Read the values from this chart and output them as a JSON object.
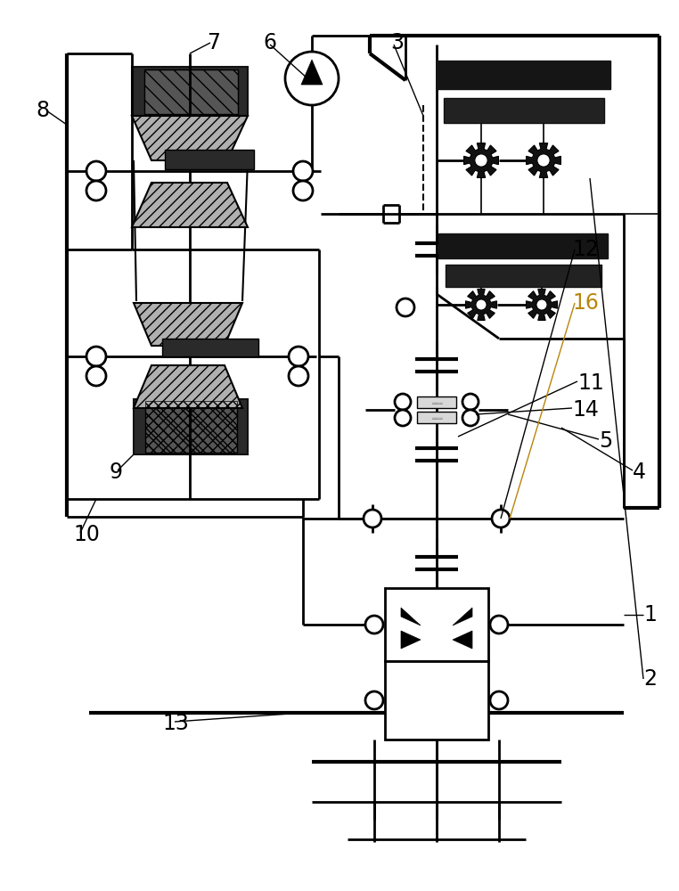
{
  "background_color": "#ffffff",
  "line_color": "#000000",
  "label_color_16": "#b8860b",
  "lw_thin": 1.2,
  "lw_med": 2.0,
  "lw_thick": 3.0,
  "fs_label": 17
}
